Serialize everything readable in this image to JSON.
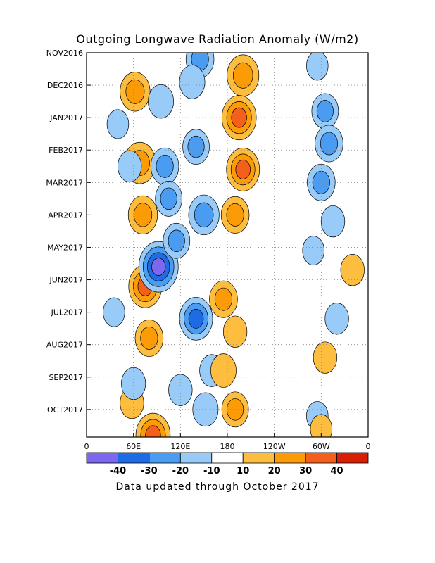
{
  "chart_data": {
    "type": "heatmap",
    "title": "Outgoing Longwave Radiation Anomaly (W/m2)",
    "subtitle": "Data updated through October 2017",
    "x_ticks": [
      "0",
      "60E",
      "120E",
      "180",
      "120W",
      "60W",
      "0"
    ],
    "x_tick_lon": [
      0,
      60,
      120,
      180,
      240,
      300,
      360
    ],
    "xlim": [
      0,
      360
    ],
    "y_ticks": [
      "NOV2016",
      "DEC2016",
      "JAN2017",
      "FEB2017",
      "MAR2017",
      "APR2017",
      "MAY2017",
      "JUN2017",
      "JUL2017",
      "AUG2017",
      "SEP2017",
      "OCT2017"
    ],
    "y_tick_month": [
      0,
      1,
      2,
      3,
      4,
      5,
      6,
      7,
      8,
      9,
      10,
      11
    ],
    "ylim": [
      0,
      11.85
    ],
    "grid": true,
    "colorbar": {
      "labels": [
        "-40",
        "-30",
        "-20",
        "-10",
        "10",
        "20",
        "30",
        "40"
      ],
      "colors": [
        "#7b68ee",
        "#1e6be6",
        "#4a9cf2",
        "#98cbf8",
        "#ffffff",
        "#fdbd3f",
        "#fb9b06",
        "#f4601c",
        "#d81f06"
      ]
    },
    "anomalies": [
      {
        "lon": 62,
        "month": 1.2,
        "value": 25
      },
      {
        "lon": 68,
        "month": 3.4,
        "value": 28
      },
      {
        "lon": 72,
        "month": 5.0,
        "value": 24
      },
      {
        "lon": 75,
        "month": 7.2,
        "value": 30
      },
      {
        "lon": 80,
        "month": 8.8,
        "value": 22
      },
      {
        "lon": 85,
        "month": 11.8,
        "value": 32
      },
      {
        "lon": 58,
        "month": 10.8,
        "value": 15
      },
      {
        "lon": 95,
        "month": 1.5,
        "value": -18
      },
      {
        "lon": 100,
        "month": 3.5,
        "value": -22
      },
      {
        "lon": 105,
        "month": 4.5,
        "value": -20
      },
      {
        "lon": 92,
        "month": 6.6,
        "value": -40
      },
      {
        "lon": 115,
        "month": 5.8,
        "value": -20
      },
      {
        "lon": 145,
        "month": 0.2,
        "value": -22
      },
      {
        "lon": 135,
        "month": 0.9,
        "value": -18
      },
      {
        "lon": 140,
        "month": 2.9,
        "value": -20
      },
      {
        "lon": 150,
        "month": 5.0,
        "value": -26
      },
      {
        "lon": 140,
        "month": 8.2,
        "value": -30
      },
      {
        "lon": 160,
        "month": 9.8,
        "value": -16
      },
      {
        "lon": 152,
        "month": 11.0,
        "value": -18
      },
      {
        "lon": 120,
        "month": 10.4,
        "value": -15
      },
      {
        "lon": 40,
        "month": 2.2,
        "value": -12
      },
      {
        "lon": 55,
        "month": 3.5,
        "value": -15
      },
      {
        "lon": 60,
        "month": 10.2,
        "value": -16
      },
      {
        "lon": 35,
        "month": 8.0,
        "value": -12
      },
      {
        "lon": 200,
        "month": 0.7,
        "value": 28
      },
      {
        "lon": 195,
        "month": 2.0,
        "value": 32
      },
      {
        "lon": 200,
        "month": 3.6,
        "value": 30
      },
      {
        "lon": 190,
        "month": 5.0,
        "value": 22
      },
      {
        "lon": 175,
        "month": 7.6,
        "value": 22
      },
      {
        "lon": 190,
        "month": 8.6,
        "value": 15
      },
      {
        "lon": 175,
        "month": 9.8,
        "value": 18
      },
      {
        "lon": 190,
        "month": 11.0,
        "value": 20
      },
      {
        "lon": 305,
        "month": 1.8,
        "value": -20
      },
      {
        "lon": 310,
        "month": 2.8,
        "value": -22
      },
      {
        "lon": 300,
        "month": 4.0,
        "value": -22
      },
      {
        "lon": 315,
        "month": 5.2,
        "value": -15
      },
      {
        "lon": 290,
        "month": 6.1,
        "value": -12
      },
      {
        "lon": 320,
        "month": 8.2,
        "value": -15
      },
      {
        "lon": 295,
        "month": 11.2,
        "value": -12
      },
      {
        "lon": 340,
        "month": 6.7,
        "value": 15
      },
      {
        "lon": 305,
        "month": 9.4,
        "value": 15
      },
      {
        "lon": 300,
        "month": 11.6,
        "value": 12
      },
      {
        "lon": 295,
        "month": 0.4,
        "value": -12
      }
    ]
  }
}
